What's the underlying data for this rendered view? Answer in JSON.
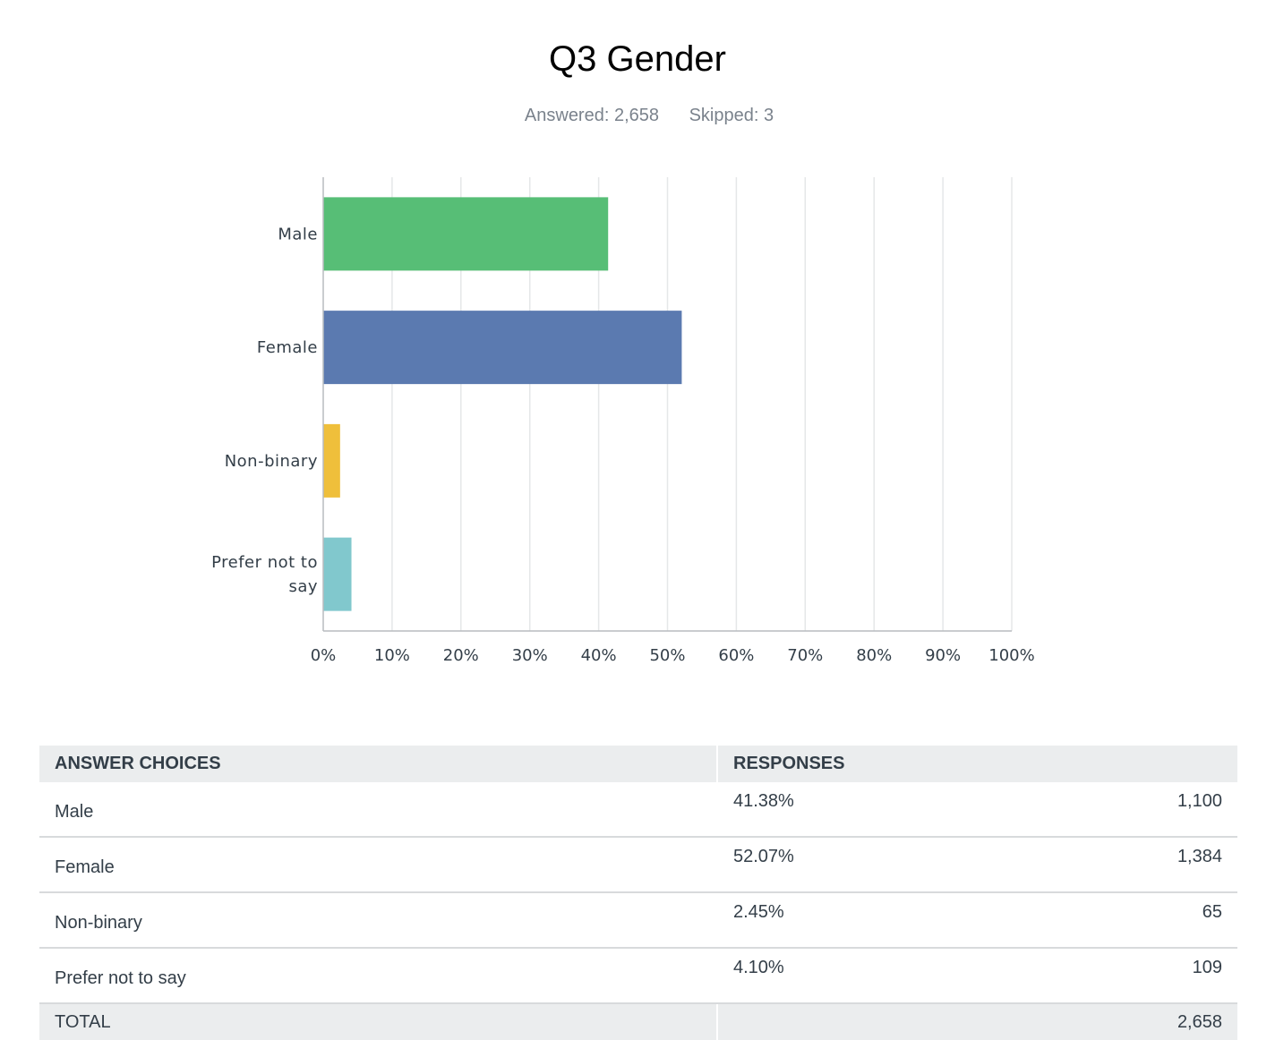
{
  "question": {
    "title": "Q3 Gender",
    "answered": "Answered: 2,658",
    "skipped": "Skipped: 3"
  },
  "chart_data": {
    "type": "bar",
    "orientation": "horizontal",
    "categories": [
      "Male",
      "Female",
      "Non-binary",
      "Prefer not to say"
    ],
    "values": [
      41.38,
      52.07,
      2.45,
      4.1
    ],
    "colors": [
      "#57be76",
      "#5b7ab0",
      "#efbf3b",
      "#81c8cd"
    ],
    "xlim": [
      0,
      100
    ],
    "xticks": [
      "0%",
      "10%",
      "20%",
      "30%",
      "40%",
      "50%",
      "60%",
      "70%",
      "80%",
      "90%",
      "100%"
    ],
    "grid": true,
    "title": "",
    "xlabel": "",
    "ylabel": ""
  },
  "table": {
    "headers": {
      "choices": "ANSWER CHOICES",
      "responses": "RESPONSES"
    },
    "rows": [
      {
        "choice": "Male",
        "percent": "41.38%",
        "count": "1,100"
      },
      {
        "choice": "Female",
        "percent": "52.07%",
        "count": "1,384"
      },
      {
        "choice": "Non-binary",
        "percent": "2.45%",
        "count": "65"
      },
      {
        "choice": "Prefer not to say",
        "percent": "4.10%",
        "count": "109"
      }
    ],
    "total": {
      "label": "TOTAL",
      "count": "2,658"
    }
  }
}
